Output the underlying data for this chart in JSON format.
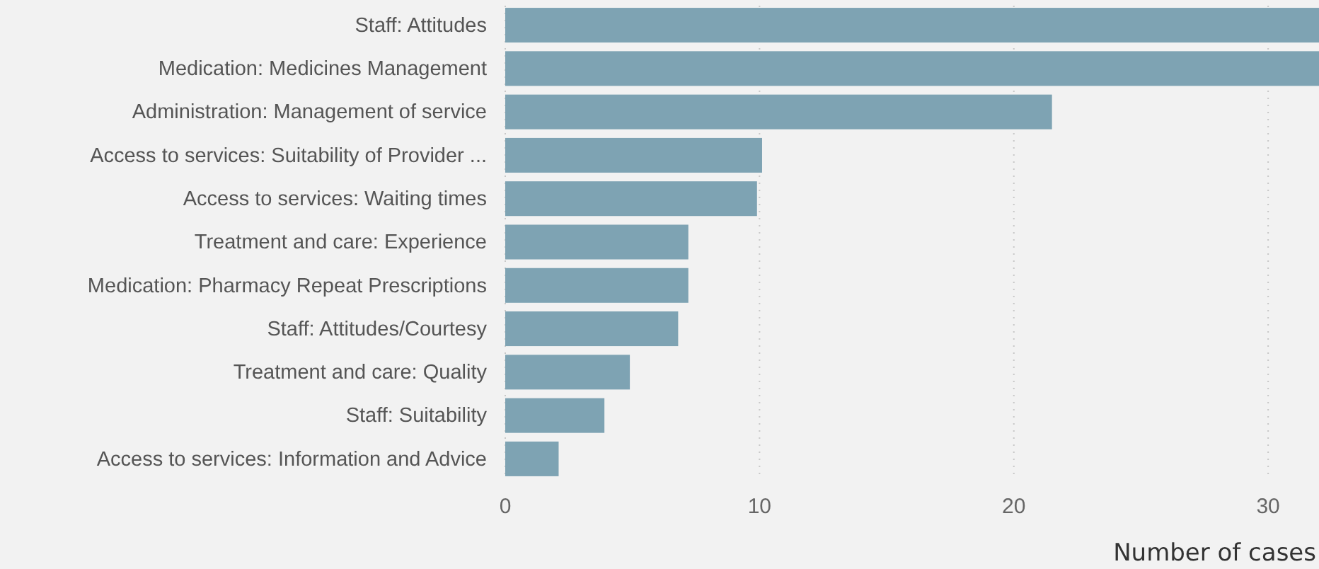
{
  "chart_data": {
    "type": "bar",
    "orientation": "horizontal",
    "xlabel": "Number of cases",
    "categories": [
      "Staff: Attitudes",
      "Medication: Medicines Management",
      "Administration: Management of service",
      "Access to services: Suitability of Provider ...",
      "Access to services: Waiting times",
      "Treatment and care: Experience",
      "Medication: Pharmacy Repeat Prescriptions",
      "Staff: Attitudes/Courtesy",
      "Treatment and care: Quality",
      "Staff: Suitability",
      "Access to services: Information and Advice"
    ],
    "values": [
      32,
      32,
      21.5,
      10.1,
      9.9,
      7.2,
      7.2,
      6.8,
      4.9,
      3.9,
      2.1
    ],
    "color": "#7ea3b3",
    "xlim": [
      0,
      32
    ],
    "xticks": [
      0,
      10,
      20,
      30
    ],
    "grid": "x"
  }
}
